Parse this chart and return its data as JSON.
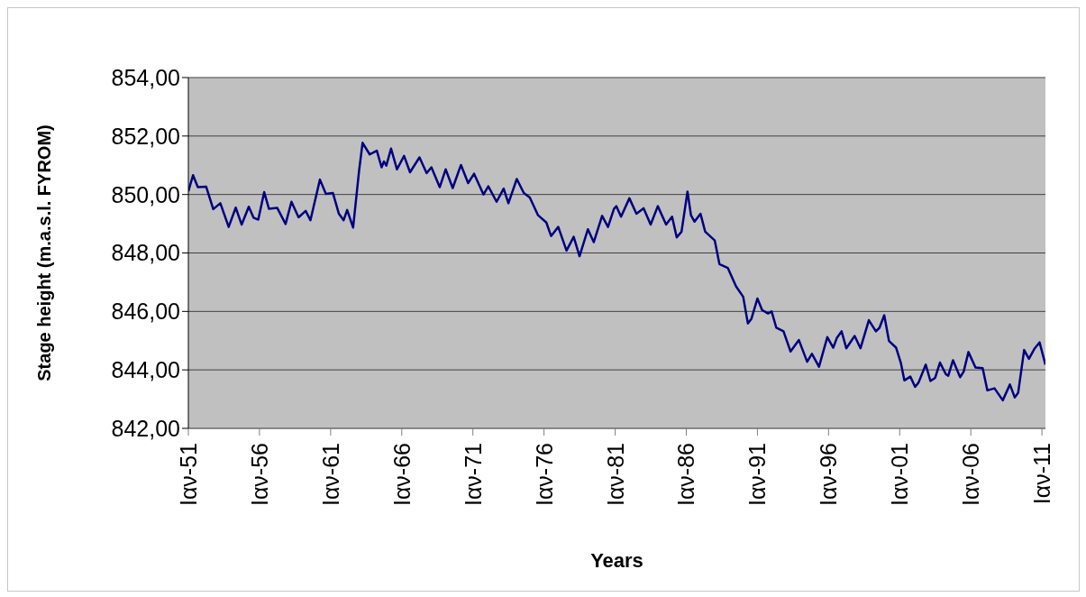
{
  "chart_data": {
    "type": "line",
    "xlabel": "Years",
    "ylabel": "Stage height (m.a.s.l. FYROM)",
    "grid": "y",
    "xlim": [
      "1951-01",
      "2011-04"
    ],
    "xticks": [
      {
        "value": "1951-01",
        "label": "Ιαν-51"
      },
      {
        "value": "1956-01",
        "label": "Ιαν-56"
      },
      {
        "value": "1961-01",
        "label": "Ιαν-61"
      },
      {
        "value": "1966-01",
        "label": "Ιαν-66"
      },
      {
        "value": "1971-01",
        "label": "Ιαν-71"
      },
      {
        "value": "1976-01",
        "label": "Ιαν-76"
      },
      {
        "value": "1981-01",
        "label": "Ιαν-81"
      },
      {
        "value": "1986-01",
        "label": "Ιαν-86"
      },
      {
        "value": "1991-01",
        "label": "Ιαν-91"
      },
      {
        "value": "1996-01",
        "label": "Ιαν-96"
      },
      {
        "value": "2001-01",
        "label": "Ιαν-01"
      },
      {
        "value": "2006-01",
        "label": "Ιαν-06"
      },
      {
        "value": "2011-01",
        "label": "Ιαν-11"
      }
    ],
    "ylim": [
      842,
      854
    ],
    "yticks": [
      {
        "value": 842,
        "label": "842,00"
      },
      {
        "value": 844,
        "label": "844,00"
      },
      {
        "value": 846,
        "label": "846,00"
      },
      {
        "value": 848,
        "label": "848,00"
      },
      {
        "value": 850,
        "label": "850,00"
      },
      {
        "value": 852,
        "label": "852,00"
      },
      {
        "value": 854,
        "label": "854,00"
      }
    ],
    "x": [
      "1951-01",
      "1951-05",
      "1951-09",
      "1952-04",
      "1952-10",
      "1953-04",
      "1953-11",
      "1954-05",
      "1954-10",
      "1955-04",
      "1955-08",
      "1955-12",
      "1956-05",
      "1956-09",
      "1957-04",
      "1957-11",
      "1958-04",
      "1958-10",
      "1959-04",
      "1959-08",
      "1960-04",
      "1960-09",
      "1961-03",
      "1961-08",
      "1961-12",
      "1962-03",
      "1962-08",
      "1963-01",
      "1963-04",
      "1963-10",
      "1964-04",
      "1964-08",
      "1964-10",
      "1964-12",
      "1965-04",
      "1965-09",
      "1966-03",
      "1966-08",
      "1967-04",
      "1967-10",
      "1968-02",
      "1968-09",
      "1969-02",
      "1969-08",
      "1970-03",
      "1970-09",
      "1971-02",
      "1971-10",
      "1972-02",
      "1972-09",
      "1973-03",
      "1973-07",
      "1974-02",
      "1974-08",
      "1975-01",
      "1975-08",
      "1976-03",
      "1976-07",
      "1977-01",
      "1977-08",
      "1978-02",
      "1978-07",
      "1979-02",
      "1979-07",
      "1980-02",
      "1980-07",
      "1980-12",
      "1981-02",
      "1981-06",
      "1982-01",
      "1982-07",
      "1983-01",
      "1983-07",
      "1984-01",
      "1984-08",
      "1985-01",
      "1985-05",
      "1985-09",
      "1986-02",
      "1986-05",
      "1986-08",
      "1987-01",
      "1987-05",
      "1988-01",
      "1988-05",
      "1988-12",
      "1989-07",
      "1990-01",
      "1990-05",
      "1990-08",
      "1991-01",
      "1991-05",
      "1991-10",
      "1992-01",
      "1992-05",
      "1992-11",
      "1993-05",
      "1993-12",
      "1994-07",
      "1994-11",
      "1995-05",
      "1995-12",
      "1996-05",
      "1996-08",
      "1996-12",
      "1997-04",
      "1997-11",
      "1998-04",
      "1998-11",
      "1999-05",
      "1999-08",
      "1999-12",
      "2000-04",
      "2000-10",
      "2001-02",
      "2001-05",
      "2001-10",
      "2002-02",
      "2002-05",
      "2002-11",
      "2003-03",
      "2003-07",
      "2003-11",
      "2004-04",
      "2004-06",
      "2004-10",
      "2005-04",
      "2005-07",
      "2005-11",
      "2006-05",
      "2006-11",
      "2007-03",
      "2007-09",
      "2008-04",
      "2008-10",
      "2009-02",
      "2009-05",
      "2009-10",
      "2010-02",
      "2010-07",
      "2010-11",
      "2011-04"
    ],
    "series": [
      {
        "color": "#000080",
        "values": [
          850.11,
          850.66,
          850.25,
          850.27,
          849.5,
          849.7,
          848.89,
          849.55,
          848.97,
          849.58,
          849.21,
          849.14,
          850.08,
          849.51,
          849.54,
          848.99,
          849.75,
          849.22,
          849.44,
          849.12,
          850.51,
          850.02,
          850.05,
          849.34,
          849.12,
          849.47,
          848.87,
          850.81,
          851.77,
          851.37,
          851.5,
          850.93,
          851.13,
          850.99,
          851.57,
          850.86,
          851.32,
          850.76,
          851.27,
          850.73,
          850.93,
          850.25,
          850.86,
          850.22,
          851.01,
          850.39,
          850.71,
          850.0,
          850.28,
          849.75,
          850.2,
          849.7,
          850.53,
          850.05,
          849.9,
          849.29,
          849.04,
          848.58,
          848.89,
          848.08,
          848.55,
          847.89,
          848.81,
          848.37,
          849.27,
          848.89,
          849.51,
          849.6,
          849.24,
          849.87,
          849.34,
          849.53,
          848.97,
          849.6,
          848.97,
          849.24,
          848.53,
          848.73,
          850.1,
          849.29,
          849.07,
          849.34,
          848.73,
          848.43,
          847.62,
          847.49,
          846.86,
          846.5,
          845.59,
          845.75,
          846.44,
          846.05,
          845.93,
          846.0,
          845.44,
          845.32,
          844.63,
          845.02,
          844.28,
          844.55,
          844.11,
          845.12,
          844.76,
          845.09,
          845.32,
          844.74,
          845.16,
          844.74,
          845.7,
          845.32,
          845.44,
          845.87,
          844.99,
          844.76,
          844.23,
          843.64,
          843.77,
          843.42,
          843.57,
          844.18,
          843.62,
          843.73,
          844.25,
          843.85,
          843.8,
          844.33,
          843.75,
          843.94,
          844.61,
          844.08,
          844.06,
          843.3,
          843.37,
          842.96,
          843.5,
          843.06,
          843.22,
          844.68,
          844.38,
          844.74,
          844.94,
          844.18
        ]
      }
    ]
  }
}
